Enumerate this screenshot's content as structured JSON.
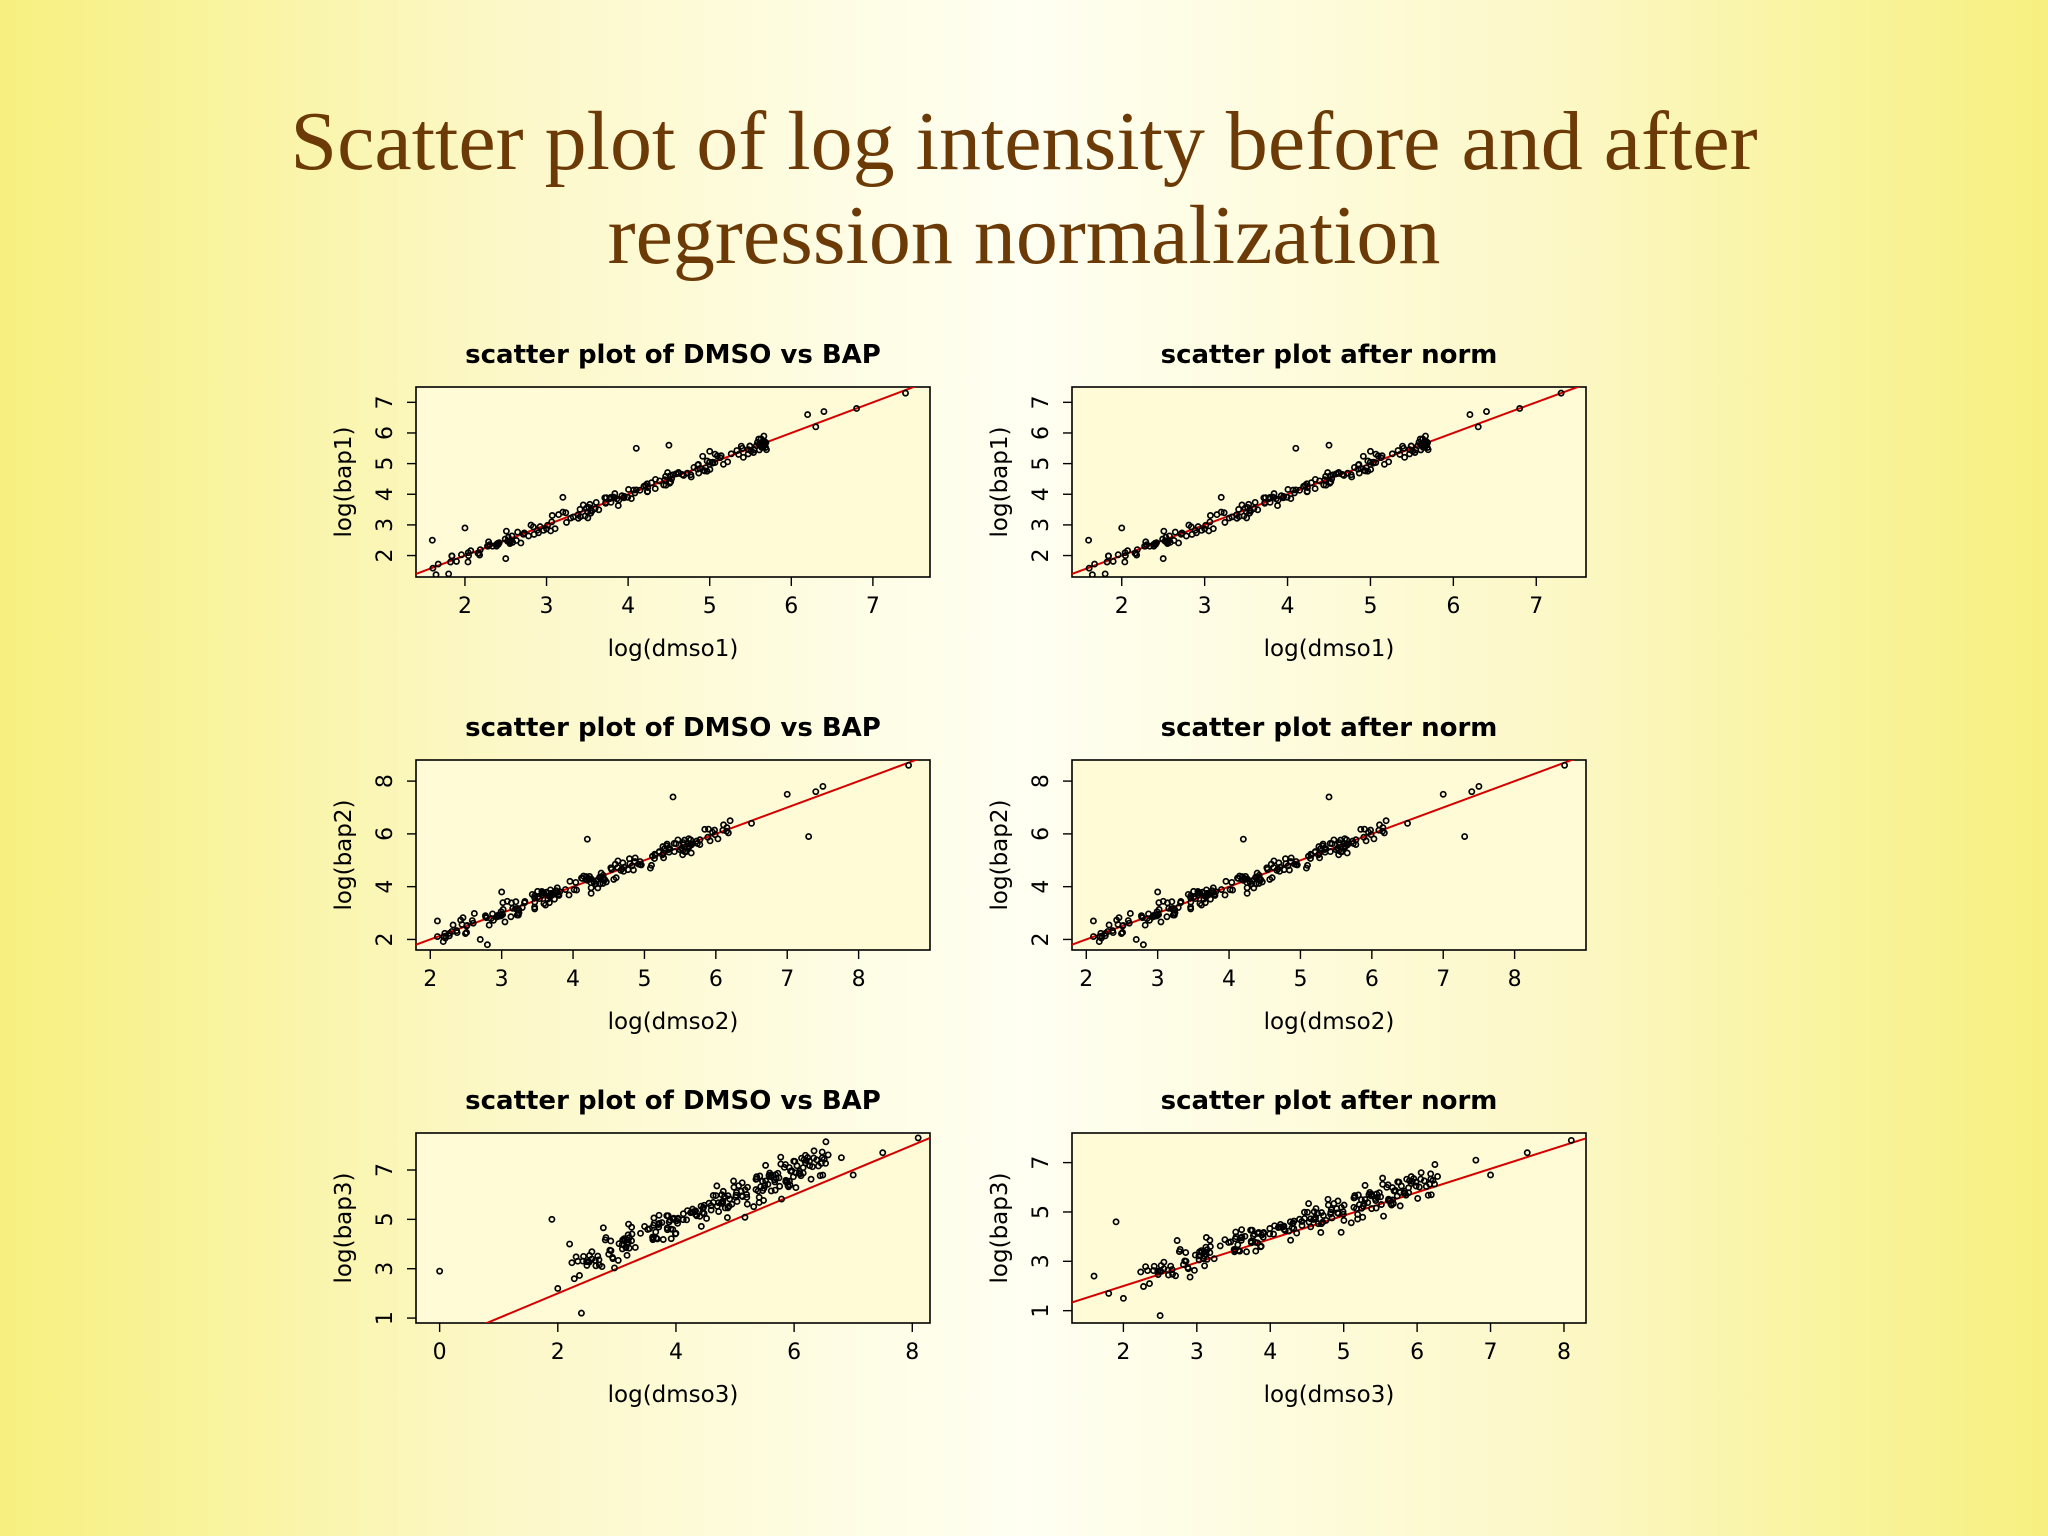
{
  "slide": {
    "title_line1": "Scatter plot of log intensity before and after",
    "title_line2": "regression normalization"
  },
  "colors": {
    "title": "#6b3a06",
    "regression_line": "#d40000",
    "points": "#000000",
    "panel_background": "#fffbd6"
  },
  "chart_data": [
    {
      "type": "scatter",
      "title": "scatter plot of DMSO vs BAP",
      "xlabel": "log(dmso1)",
      "ylabel": "log(bap1)",
      "xlim": [
        1.4,
        7.7
      ],
      "ylim": [
        1.3,
        7.5
      ],
      "xticks": [
        2,
        3,
        4,
        5,
        6,
        7
      ],
      "yticks": [
        2,
        3,
        4,
        5,
        6,
        7
      ],
      "ytick_rotated": true,
      "fit_line": {
        "slope": 1.0,
        "intercept": 0.0
      },
      "trend": {
        "slope": 1.0,
        "intercept": 0.0
      },
      "n_points": 180,
      "spread": 0.22,
      "xrange": [
        1.6,
        5.7
      ],
      "extra_points": [
        [
          1.6,
          2.5
        ],
        [
          1.8,
          1.4
        ],
        [
          2.0,
          2.9
        ],
        [
          2.5,
          1.9
        ],
        [
          3.2,
          3.9
        ],
        [
          4.1,
          5.5
        ],
        [
          4.5,
          5.6
        ],
        [
          5.0,
          5.4
        ],
        [
          5.4,
          5.5
        ],
        [
          5.6,
          5.8
        ],
        [
          6.2,
          6.6
        ],
        [
          6.3,
          6.2
        ],
        [
          6.4,
          6.7
        ],
        [
          6.8,
          6.8
        ],
        [
          7.4,
          7.3
        ]
      ]
    },
    {
      "type": "scatter",
      "title": "scatter plot after norm",
      "xlabel": "log(dmso1)",
      "ylabel": "log(bap1)",
      "xlim": [
        1.4,
        7.6
      ],
      "ylim": [
        1.3,
        7.5
      ],
      "xticks": [
        2,
        3,
        4,
        5,
        6,
        7
      ],
      "yticks": [
        2,
        3,
        4,
        5,
        6,
        7
      ],
      "ytick_rotated": true,
      "fit_line": {
        "slope": 1.0,
        "intercept": 0.0
      },
      "trend": {
        "slope": 1.0,
        "intercept": 0.0
      },
      "n_points": 180,
      "spread": 0.22,
      "xrange": [
        1.6,
        5.7
      ],
      "extra_points": [
        [
          1.6,
          2.5
        ],
        [
          1.8,
          1.4
        ],
        [
          2.0,
          2.9
        ],
        [
          2.5,
          1.9
        ],
        [
          3.2,
          3.9
        ],
        [
          4.1,
          5.5
        ],
        [
          4.5,
          5.6
        ],
        [
          5.0,
          5.4
        ],
        [
          5.4,
          5.5
        ],
        [
          5.6,
          5.8
        ],
        [
          6.2,
          6.6
        ],
        [
          6.3,
          6.2
        ],
        [
          6.4,
          6.7
        ],
        [
          6.8,
          6.8
        ],
        [
          7.3,
          7.3
        ]
      ]
    },
    {
      "type": "scatter",
      "title": "scatter plot of DMSO vs BAP",
      "xlabel": "log(dmso2)",
      "ylabel": "log(bap2)",
      "xlim": [
        1.8,
        9.0
      ],
      "ylim": [
        1.6,
        8.8
      ],
      "xticks": [
        2,
        3,
        4,
        5,
        6,
        7,
        8
      ],
      "yticks": [
        2,
        4,
        6,
        8
      ],
      "ytick_rotated": true,
      "fit_line": {
        "slope": 1.0,
        "intercept": 0.0
      },
      "trend": {
        "slope": 1.0,
        "intercept": 0.0
      },
      "n_points": 200,
      "spread": 0.3,
      "xrange": [
        2.1,
        6.2
      ],
      "extra_points": [
        [
          2.1,
          2.7
        ],
        [
          2.3,
          2.3
        ],
        [
          2.7,
          2.0
        ],
        [
          2.8,
          1.8
        ],
        [
          3.0,
          3.8
        ],
        [
          4.2,
          5.8
        ],
        [
          5.4,
          7.4
        ],
        [
          6.2,
          6.5
        ],
        [
          6.5,
          6.4
        ],
        [
          7.0,
          7.5
        ],
        [
          7.3,
          5.9
        ],
        [
          7.4,
          7.6
        ],
        [
          7.5,
          7.8
        ],
        [
          8.7,
          8.6
        ]
      ]
    },
    {
      "type": "scatter",
      "title": "scatter plot after norm",
      "xlabel": "log(dmso2)",
      "ylabel": "log(bap2)",
      "xlim": [
        1.8,
        9.0
      ],
      "ylim": [
        1.6,
        8.8
      ],
      "xticks": [
        2,
        3,
        4,
        5,
        6,
        7,
        8
      ],
      "yticks": [
        2,
        4,
        6,
        8
      ],
      "ytick_rotated": true,
      "fit_line": {
        "slope": 1.0,
        "intercept": 0.0
      },
      "trend": {
        "slope": 1.0,
        "intercept": 0.0
      },
      "n_points": 200,
      "spread": 0.3,
      "xrange": [
        2.1,
        6.2
      ],
      "extra_points": [
        [
          2.1,
          2.7
        ],
        [
          2.3,
          2.3
        ],
        [
          2.7,
          2.0
        ],
        [
          2.8,
          1.8
        ],
        [
          3.0,
          3.8
        ],
        [
          4.2,
          5.8
        ],
        [
          5.4,
          7.4
        ],
        [
          6.2,
          6.5
        ],
        [
          6.5,
          6.4
        ],
        [
          7.0,
          7.5
        ],
        [
          7.3,
          5.9
        ],
        [
          7.4,
          7.6
        ],
        [
          7.5,
          7.8
        ],
        [
          8.7,
          8.6
        ]
      ]
    },
    {
      "type": "scatter",
      "title": "scatter plot of DMSO vs BAP",
      "xlabel": "log(dmso3)",
      "ylabel": "log(bap3)",
      "xlim": [
        -0.4,
        8.3
      ],
      "ylim": [
        0.8,
        8.5
      ],
      "xticks": [
        0,
        2,
        4,
        6,
        8
      ],
      "yticks": [
        1,
        3,
        5,
        7
      ],
      "ytick_rotated": true,
      "fit_line": {
        "slope": 1.0,
        "intercept": 0.0
      },
      "trend": {
        "slope": 1.0,
        "intercept": 0.9
      },
      "n_points": 230,
      "spread": 0.55,
      "xrange": [
        2.2,
        6.6
      ],
      "extra_points": [
        [
          0.0,
          2.9
        ],
        [
          1.9,
          5.0
        ],
        [
          2.0,
          2.2
        ],
        [
          2.4,
          1.2
        ],
        [
          2.2,
          4.0
        ],
        [
          6.8,
          7.5
        ],
        [
          7.0,
          6.8
        ],
        [
          7.5,
          7.7
        ],
        [
          8.1,
          8.3
        ]
      ]
    },
    {
      "type": "scatter",
      "title": "scatter plot after norm",
      "xlabel": "log(dmso3)",
      "ylabel": "log(bap3)",
      "xlim": [
        1.3,
        8.3
      ],
      "ylim": [
        0.5,
        8.2
      ],
      "xticks": [
        2,
        3,
        4,
        5,
        6,
        7,
        8
      ],
      "yticks": [
        1,
        3,
        5,
        7
      ],
      "ytick_rotated": true,
      "fit_line": {
        "slope": 0.95,
        "intercept": 0.1
      },
      "trend": {
        "slope": 0.95,
        "intercept": 0.35
      },
      "n_points": 230,
      "spread": 0.5,
      "xrange": [
        2.2,
        6.3
      ],
      "extra_points": [
        [
          1.6,
          2.4
        ],
        [
          1.8,
          1.7
        ],
        [
          2.0,
          1.5
        ],
        [
          1.9,
          4.6
        ],
        [
          2.5,
          0.8
        ],
        [
          6.8,
          7.1
        ],
        [
          7.0,
          6.5
        ],
        [
          7.5,
          7.4
        ],
        [
          8.1,
          7.9
        ]
      ]
    }
  ]
}
